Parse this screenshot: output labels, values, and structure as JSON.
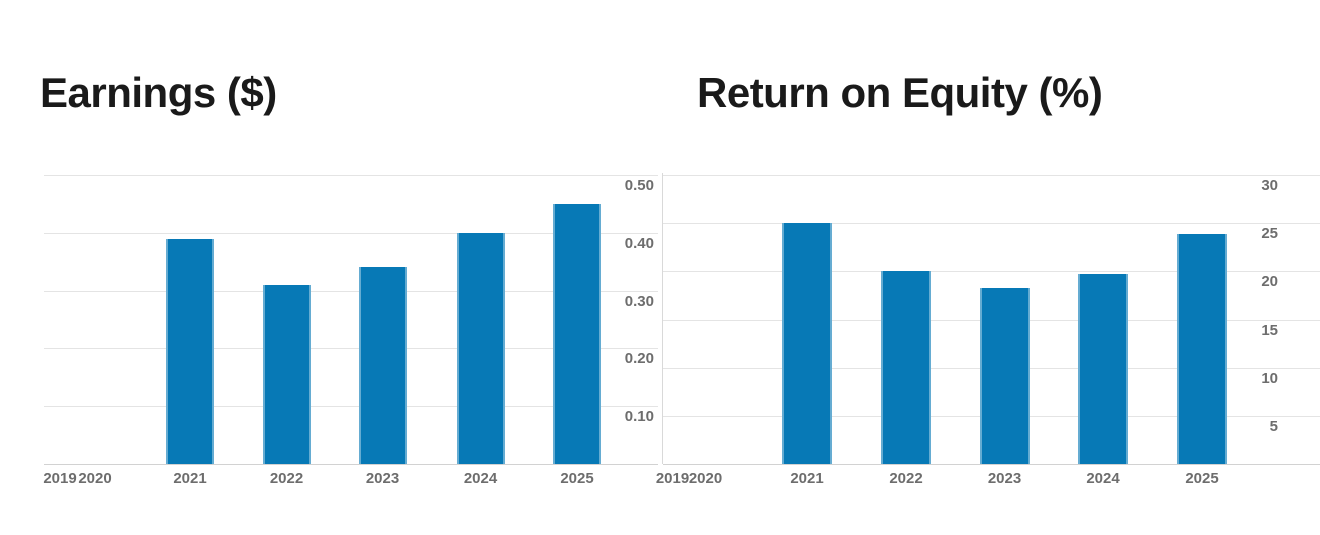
{
  "chart_data": [
    {
      "type": "bar",
      "title": "Earnings ($)",
      "categories": [
        "2019",
        "2020",
        "2021",
        "2022",
        "2023",
        "2024",
        "2025"
      ],
      "values": [
        null,
        null,
        0.39,
        0.31,
        0.34,
        0.4,
        0.45
      ],
      "xlabel": "",
      "ylabel": "",
      "ylim": [
        0,
        0.5
      ],
      "y_ticks": [
        0.1,
        0.2,
        0.3,
        0.4,
        0.5
      ],
      "y_tick_labels": [
        "0.10",
        "0.20",
        "0.30",
        "0.40",
        "0.50"
      ],
      "y_axis_side": "right",
      "grid": true,
      "legend": "none"
    },
    {
      "type": "bar",
      "title": "Return on Equity (%)",
      "categories": [
        "2019",
        "2020",
        "2021",
        "2022",
        "2023",
        "2024",
        "2025"
      ],
      "values": [
        null,
        null,
        25.0,
        20.0,
        18.3,
        19.7,
        23.9
      ],
      "xlabel": "",
      "ylabel": "",
      "ylim": [
        0,
        30
      ],
      "y_ticks": [
        5,
        10,
        15,
        20,
        25,
        30
      ],
      "y_tick_labels": [
        "5",
        "10",
        "15",
        "20",
        "25",
        "30"
      ],
      "y_axis_side": "right",
      "grid": true,
      "legend": "none"
    }
  ],
  "colors": {
    "bar_fill": "#0779b6",
    "bar_edge_highlight": "#5fa5cd",
    "gridline": "#e4e4e4",
    "axis_line": "#d2d2d2",
    "panel_divider": "#d9d9d9",
    "tick_label": "#6d6d6d",
    "title_text": "#1a1a1a",
    "background": "#ffffff"
  }
}
